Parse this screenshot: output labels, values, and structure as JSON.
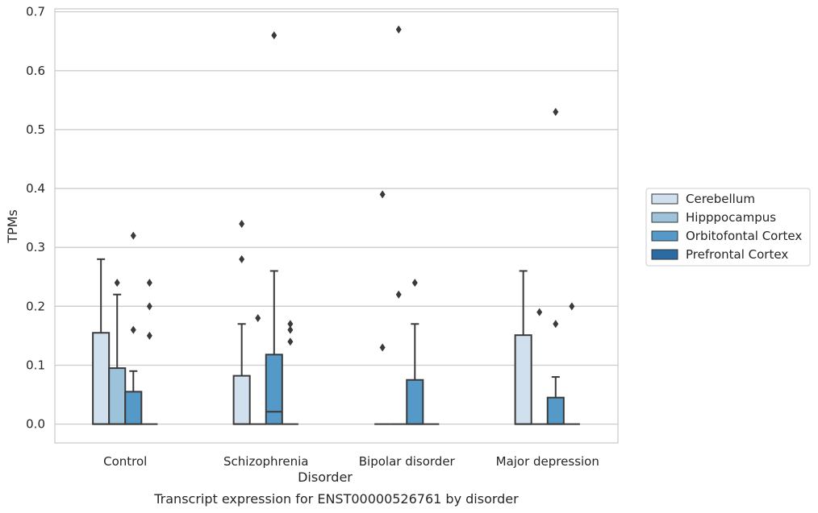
{
  "caption": "Transcript expression for ENST00000526761 by disorder",
  "colors": {
    "grid": "#cccccc",
    "frame": "#cccccc",
    "box_edge": "#3a3a3a",
    "series": [
      "#d0e0ef",
      "#9dc3db",
      "#5499c7",
      "#2b6ba3"
    ]
  },
  "chart_data": {
    "type": "box",
    "title": "",
    "xlabel": "Disorder",
    "ylabel": "TPMs",
    "ylim": [
      -0.032,
      0.705
    ],
    "yticks": [
      "0.0",
      "0.1",
      "0.2",
      "0.3",
      "0.4",
      "0.5",
      "0.6",
      "0.7"
    ],
    "grid": true,
    "legend_position": "right",
    "categories": [
      "Control",
      "Schizophrenia",
      "Bipolar disorder",
      "Major depression"
    ],
    "series": [
      {
        "name": "Cerebellum",
        "boxes": [
          {
            "whisker_low": 0,
            "q1": 0,
            "median": 0,
            "q3": 0.155,
            "whisker_high": 0.28,
            "outliers": []
          },
          {
            "whisker_low": 0,
            "q1": 0,
            "median": 0,
            "q3": 0.082,
            "whisker_high": 0.17,
            "outliers": [
              0.28,
              0.34
            ]
          },
          {
            "whisker_low": 0,
            "q1": 0,
            "median": 0,
            "q3": 0,
            "whisker_high": 0,
            "outliers": [
              0.13,
              0.39
            ]
          },
          {
            "whisker_low": 0,
            "q1": 0,
            "median": 0,
            "q3": 0.151,
            "whisker_high": 0.26,
            "outliers": []
          }
        ]
      },
      {
        "name": "Hipppocampus",
        "boxes": [
          {
            "whisker_low": 0,
            "q1": 0,
            "median": 0,
            "q3": 0.095,
            "whisker_high": 0.22,
            "outliers": [
              0.24
            ]
          },
          {
            "whisker_low": 0,
            "q1": 0,
            "median": 0,
            "q3": 0,
            "whisker_high": 0,
            "outliers": [
              0.18
            ]
          },
          {
            "whisker_low": 0,
            "q1": 0,
            "median": 0,
            "q3": 0,
            "whisker_high": 0,
            "outliers": [
              0.22,
              0.67
            ]
          },
          {
            "whisker_low": 0,
            "q1": 0,
            "median": 0,
            "q3": 0,
            "whisker_high": 0,
            "outliers": [
              0.19
            ]
          }
        ]
      },
      {
        "name": "Orbitofontal Cortex",
        "boxes": [
          {
            "whisker_low": 0,
            "q1": 0,
            "median": 0,
            "q3": 0.055,
            "whisker_high": 0.09,
            "outliers": [
              0.16,
              0.32
            ]
          },
          {
            "whisker_low": 0,
            "q1": 0,
            "median": 0.021,
            "q3": 0.118,
            "whisker_high": 0.26,
            "outliers": [
              0.66
            ]
          },
          {
            "whisker_low": 0,
            "q1": 0,
            "median": 0,
            "q3": 0.075,
            "whisker_high": 0.17,
            "outliers": [
              0.24
            ]
          },
          {
            "whisker_low": 0,
            "q1": 0,
            "median": 0,
            "q3": 0.045,
            "whisker_high": 0.08,
            "outliers": [
              0.17,
              0.53
            ]
          }
        ]
      },
      {
        "name": "Prefrontal Cortex",
        "boxes": [
          {
            "whisker_low": 0,
            "q1": 0,
            "median": 0,
            "q3": 0,
            "whisker_high": 0,
            "outliers": [
              0.15,
              0.2,
              0.24
            ]
          },
          {
            "whisker_low": 0,
            "q1": 0,
            "median": 0,
            "q3": 0,
            "whisker_high": 0,
            "outliers": [
              0.14,
              0.16,
              0.17
            ]
          },
          {
            "whisker_low": 0,
            "q1": 0,
            "median": 0,
            "q3": 0,
            "whisker_high": 0,
            "outliers": []
          },
          {
            "whisker_low": 0,
            "q1": 0,
            "median": 0,
            "q3": 0,
            "whisker_high": 0,
            "outliers": [
              0.2
            ]
          }
        ]
      }
    ]
  }
}
